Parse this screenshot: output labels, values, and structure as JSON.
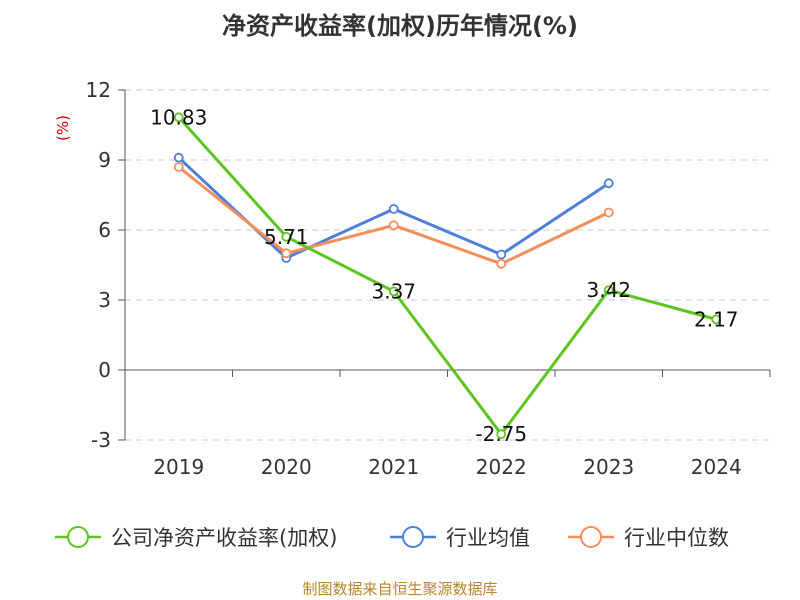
{
  "chart_data": {
    "type": "line",
    "title": "净资产收益率(加权)历年情况(%)",
    "ylabel": "(%)",
    "categories": [
      "2019",
      "2020",
      "2021",
      "2022",
      "2023",
      "2024"
    ],
    "ylim": [
      -3,
      12
    ],
    "yticks": [
      -3,
      0,
      3,
      6,
      9,
      12
    ],
    "grid": "horizontal dashed",
    "legend_position": "bottom",
    "series": [
      {
        "name": "公司净资产收益率(加权)",
        "color": "#5ec41f",
        "values": [
          10.83,
          5.71,
          3.37,
          -2.75,
          3.42,
          2.17
        ],
        "data_labels": [
          "10.83",
          "5.71",
          "3.37",
          "-2.75",
          "3.42",
          "2.17"
        ]
      },
      {
        "name": "行业均值",
        "color": "#4f7fd9",
        "values": [
          9.1,
          4.8,
          6.9,
          4.95,
          8.0,
          null
        ]
      },
      {
        "name": "行业中位数",
        "color": "#f48f5c",
        "values": [
          8.7,
          5.0,
          6.2,
          4.55,
          6.75,
          null
        ]
      }
    ]
  },
  "source": "制图数据来自恒生聚源数据库"
}
